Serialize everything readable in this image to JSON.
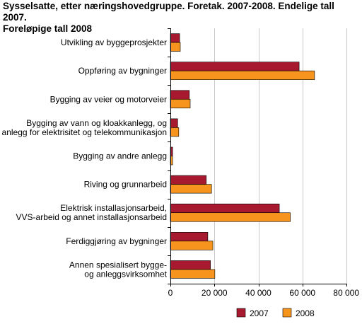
{
  "title_lines": [
    "Sysselsatte, etter næringshovedgruppe. Foretak. 2007-2008. Endelige tall 2007.",
    "Foreløpige tall 2008"
  ],
  "chart_data": {
    "type": "bar",
    "orientation": "horizontal",
    "title": "Sysselsatte, etter næringshovedgruppe. Foretak. 2007-2008. Endelige tall 2007. Foreløpige tall 2008",
    "categories": [
      [
        "Utvikling av byggeprosjekter"
      ],
      [
        "Oppføring av bygninger"
      ],
      [
        "Bygging av veier og motorveier"
      ],
      [
        "Bygging av vann og kloakkanlegg, og",
        "anlegg for elektrisitet og telekommunikasjon"
      ],
      [
        "Bygging av andre anlegg"
      ],
      [
        "Riving og grunnarbeid"
      ],
      [
        "Elektrisk installasjonsarbeid,",
        "VVS-arbeid og annet installasjonsarbeid"
      ],
      [
        "Ferdiggjøring av bygninger"
      ],
      [
        "Annen spesialisert bygge-",
        "og anleggsvirksomhet"
      ]
    ],
    "series": [
      {
        "name": "2007",
        "color": "#a6192e",
        "values": [
          4200,
          58500,
          8600,
          3300,
          1000,
          16300,
          49500,
          17000,
          18200
        ]
      },
      {
        "name": "2008",
        "color": "#f7941d",
        "values": [
          4500,
          65500,
          9000,
          3800,
          1000,
          18700,
          54500,
          19300,
          20200
        ]
      }
    ],
    "xlim": [
      0,
      80000
    ],
    "xticks": [
      0,
      20000,
      40000,
      60000,
      80000
    ],
    "xtick_labels": [
      "0",
      "20 000",
      "40 000",
      "60 000",
      "80 000"
    ],
    "grid": "vertical",
    "legend": "bottom"
  }
}
